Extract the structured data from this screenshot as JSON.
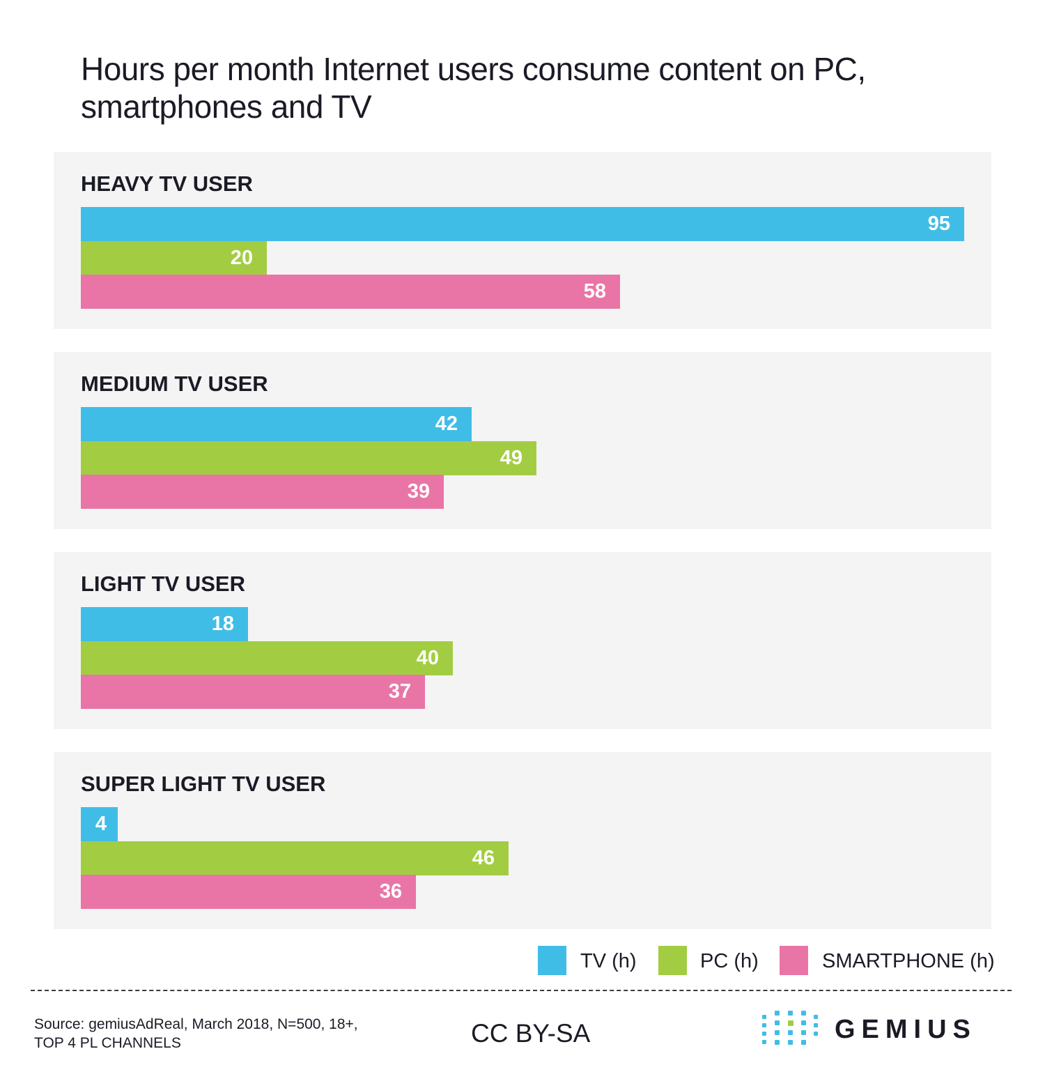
{
  "title": "Hours per month Internet users consume content on PC, smartphones and TV",
  "chart_data": {
    "type": "bar",
    "orientation": "horizontal",
    "categories": [
      "HEAVY TV USER",
      "MEDIUM TV USER",
      "LIGHT TV USER",
      "SUPER LIGHT TV USER"
    ],
    "series": [
      {
        "name": "TV (h)",
        "color": "#40bde6",
        "values": [
          95,
          42,
          18,
          4
        ]
      },
      {
        "name": "PC (h)",
        "color": "#a2cd42",
        "values": [
          20,
          49,
          40,
          46
        ]
      },
      {
        "name": "SMARTPHONE (h)",
        "color": "#e975a6",
        "values": [
          58,
          39,
          37,
          36
        ]
      }
    ],
    "xlim": [
      0,
      100
    ],
    "grid": false,
    "legend": "bottom-right"
  },
  "footer": {
    "source_line1": "Source: gemiusAdReal, March 2018, N=500,  18+,",
    "source_line2": "TOP 4 PL CHANNELS",
    "license": "CC BY-SA",
    "logo_text": "GEMIUS"
  }
}
